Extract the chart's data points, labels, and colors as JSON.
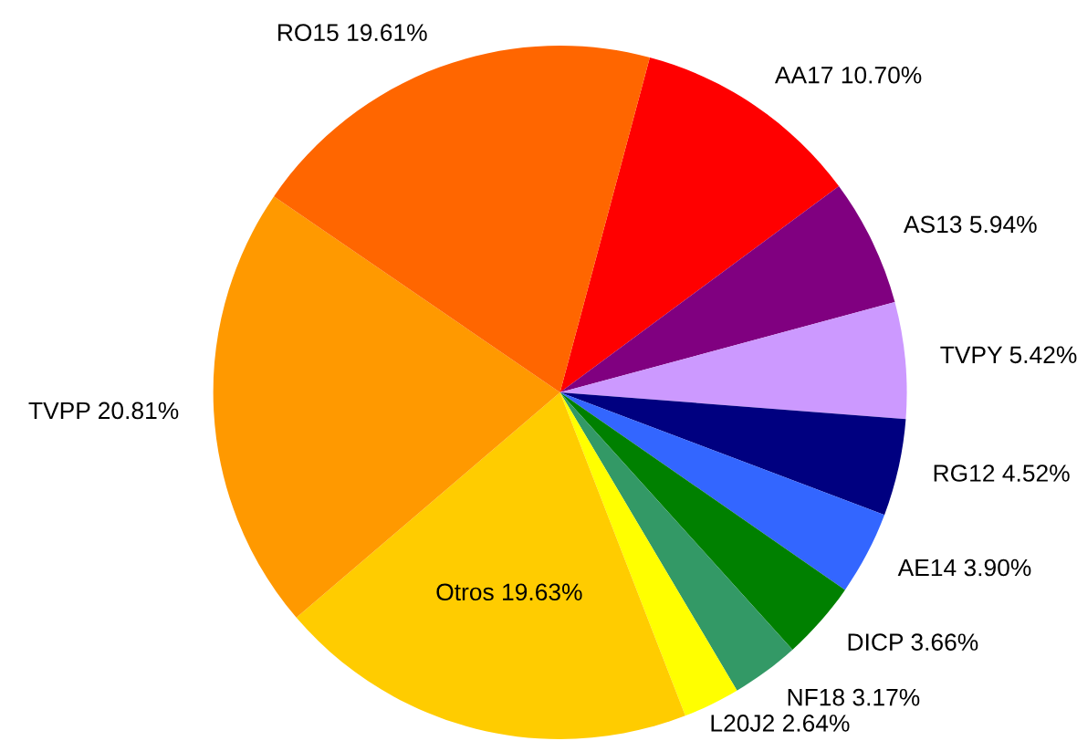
{
  "chart_data": {
    "type": "pie",
    "categories": [
      "AA17",
      "AS13",
      "TVPY",
      "RG12",
      "AE14",
      "DICP",
      "NF18",
      "L20J2",
      "Otros",
      "TVPP",
      "RO15"
    ],
    "values": [
      10.7,
      5.94,
      5.42,
      4.52,
      3.9,
      3.66,
      3.17,
      2.64,
      19.63,
      20.81,
      19.61
    ],
    "value_labels": [
      "10.70%",
      "5.94%",
      "5.42%",
      "4.52%",
      "3.90%",
      "3.66%",
      "3.17%",
      "2.64%",
      "19.63%",
      "20.81%",
      "19.61%"
    ],
    "colors": [
      "#ff0000",
      "#800080",
      "#cc99ff",
      "#000080",
      "#3366ff",
      "#008000",
      "#339966",
      "#ffff00",
      "#ffcc00",
      "#ff9900",
      "#ff6600"
    ]
  }
}
